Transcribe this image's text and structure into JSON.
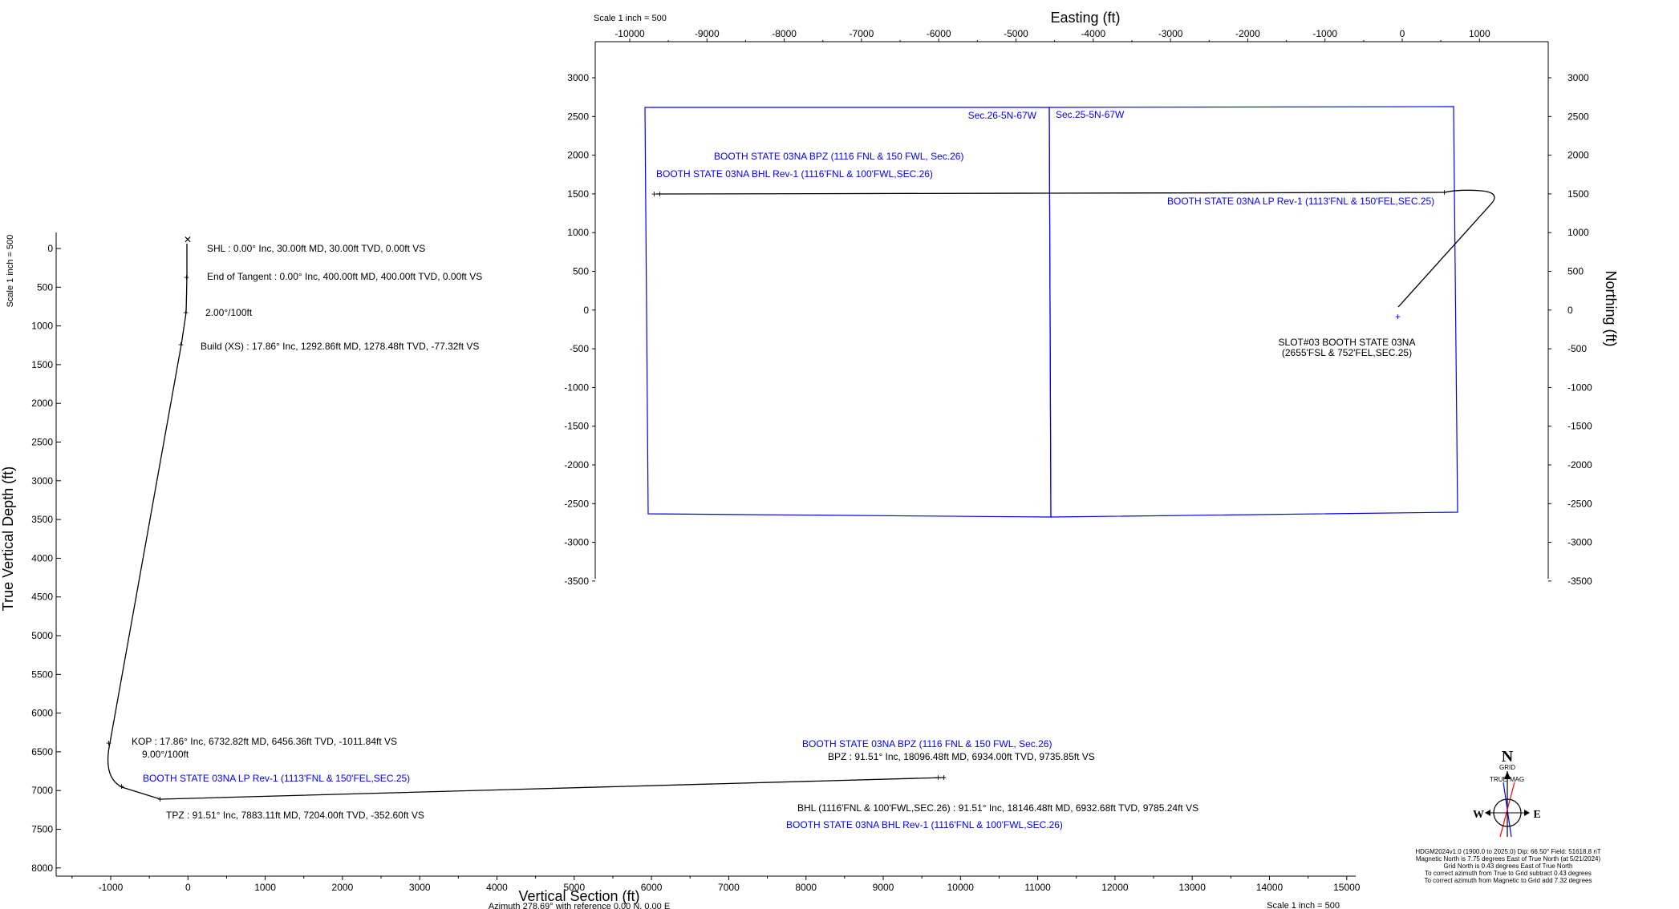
{
  "plan_view": {
    "scale_label": "Scale 1 inch = 500",
    "x_axis_title": "Easting (ft)",
    "y_axis_title": "Northing (ft)",
    "x_ticks": [
      "-10000",
      "-9000",
      "-8000",
      "-7000",
      "-6000",
      "-5000",
      "-4000",
      "-3000",
      "-2000",
      "-1000",
      "0",
      "1000"
    ],
    "y_ticks": [
      "3000",
      "2500",
      "2000",
      "1500",
      "1000",
      "500",
      "0",
      "-500",
      "-1000",
      "-1500",
      "-2000",
      "-2500",
      "-3000",
      "-3500"
    ],
    "section_label_left": "Sec.26-5N-67W",
    "section_label_right": "Sec.25-5N-67W",
    "bpz_label": "BOOTH STATE 03NA BPZ (1116 FNL & 150 FWL, Sec.26)",
    "bhl_label": "BOOTH STATE 03NA BHL Rev-1 (1116'FNL & 100'FWL,SEC.26)",
    "lp_label": "BOOTH STATE 03NA LP Rev-1 (1113'FNL & 150'FEL,SEC.25)",
    "slot_label_1": "SLOT#03 BOOTH STATE 03NA",
    "slot_label_2": "(2655'FSL & 752'FEL,SEC.25)"
  },
  "section_view": {
    "scale_label_left": "Scale 1 inch = 500",
    "scale_label_bottom": "Scale 1 inch = 500",
    "x_axis_title": "Vertical Section (ft)",
    "x_axis_subtitle": "Azimuth 278.69° with reference 0.00 N, 0.00 E",
    "y_axis_title": "True Vertical Depth (ft)",
    "x_ticks": [
      "-1000",
      "0",
      "1000",
      "2000",
      "3000",
      "4000",
      "5000",
      "6000",
      "7000",
      "8000",
      "9000",
      "10000",
      "11000",
      "12000",
      "13000",
      "14000",
      "15000"
    ],
    "y_ticks": [
      "0",
      "500",
      "1000",
      "1500",
      "2000",
      "2500",
      "3000",
      "3500",
      "4000",
      "4500",
      "5000",
      "5500",
      "6000",
      "6500",
      "7000",
      "7500",
      "8000"
    ],
    "shl_label": "SHL : 0.00° Inc, 30.00ft MD, 30.00ft TVD, 0.00ft VS",
    "eot_label": "End of Tangent : 0.00° Inc, 400.00ft MD, 400.00ft TVD, 0.00ft VS",
    "build_rate_label": "2.00°/100ft",
    "build_label": "Build (XS) : 17.86° Inc, 1292.86ft MD, 1278.48ft TVD, -77.32ft VS",
    "kop_label": "KOP : 17.86° Inc, 6732.82ft MD, 6456.36ft TVD, -1011.84ft VS",
    "dls_label": "9.00°/100ft",
    "lp_label": "BOOTH STATE 03NA LP Rev-1 (1113'FNL & 150'FEL,SEC.25)",
    "tpz_label": "TPZ : 91.51° Inc, 7883.11ft MD, 7204.00ft TVD, -352.60ft VS",
    "bpz_target_label": "BOOTH STATE 03NA BPZ (1116 FNL & 150 FWL, Sec.26)",
    "bpz_label": "BPZ : 91.51° Inc, 18096.48ft MD, 6934.00ft TVD, 9735.85ft VS",
    "bhl_label": "BHL (1116'FNL & 100'FWL,SEC.26) : 91.51° Inc, 18146.48ft MD, 6932.68ft TVD, 9785.24ft VS",
    "bhl_target_label": "BOOTH STATE 03NA BHL Rev-1 (1116'FNL & 100'FWL,SEC.26)"
  },
  "north_arrow": {
    "n": "N",
    "grid": "GRID",
    "true": "TRUE",
    "mag": "MAG",
    "w": "W",
    "e": "E",
    "line1": "HDGM2024v1.0 (1900.0 to 2025.0) Dip: 66.50° Field: 51618.8 nT",
    "line2": "Magnetic North is 7.75 degrees East of True North (at 5/21/2024)",
    "line3": "Grid North is 0.43 degrees East of True North",
    "line4": "To correct azimuth from True to Grid subtract 0.43 degrees",
    "line5": "To correct azimuth from Magnetic to Grid add 7.32 degrees"
  },
  "colors": {
    "blue": "#0000ff",
    "black": "#000000"
  }
}
